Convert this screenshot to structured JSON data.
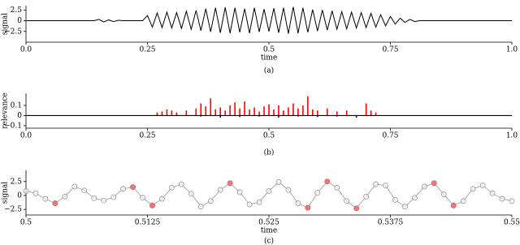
{
  "chart_data": [
    {
      "type": "line",
      "caption": "(a)",
      "ylabel": "signal",
      "xlabel": "time",
      "color": "#000000",
      "x": [
        0,
        0.01,
        0.02,
        0.03,
        0.04,
        0.05,
        0.06,
        0.07,
        0.08,
        0.09,
        0.1,
        0.11,
        0.12,
        0.13,
        0.14,
        0.15,
        0.16,
        0.17,
        0.18,
        0.19,
        0.2,
        0.21,
        0.22,
        0.23,
        0.24,
        0.25,
        0.26,
        0.27,
        0.28,
        0.29,
        0.3,
        0.31,
        0.32,
        0.33,
        0.34,
        0.35,
        0.36,
        0.37,
        0.38,
        0.39,
        0.4,
        0.41,
        0.42,
        0.43,
        0.44,
        0.45,
        0.46,
        0.47,
        0.48,
        0.49,
        0.5,
        0.51,
        0.52,
        0.53,
        0.54,
        0.55,
        0.56,
        0.57,
        0.58,
        0.59,
        0.6,
        0.61,
        0.62,
        0.63,
        0.64,
        0.65,
        0.66,
        0.67,
        0.68,
        0.69,
        0.7,
        0.71,
        0.72,
        0.73,
        0.74,
        0.75,
        0.76,
        0.77,
        0.78,
        0.79,
        0.8,
        0.81,
        0.82,
        0.83,
        0.84,
        0.85,
        0.86,
        0.87,
        0.88,
        0.89,
        0.9,
        0.91,
        0.92,
        0.93,
        0.94,
        0.95,
        0.96,
        0.97,
        0.98,
        0.99,
        1
      ],
      "values": [
        0,
        0,
        0,
        0,
        0,
        0,
        0,
        0,
        0,
        0,
        0,
        0,
        0,
        0,
        0,
        0.3,
        -0.3,
        0.2,
        -0.2,
        0.1,
        0,
        0,
        0,
        0,
        0,
        1.2,
        -1.5,
        1.8,
        -1.6,
        2.0,
        -1.7,
        1.9,
        -1.8,
        2.2,
        -2.0,
        2.4,
        -2.3,
        2.8,
        -2.6,
        3.0,
        -2.8,
        3.1,
        -2.9,
        3.0,
        -2.7,
        2.8,
        -2.9,
        3.0,
        -2.6,
        2.7,
        -2.5,
        2.9,
        -2.8,
        3.0,
        -3.0,
        3.2,
        -2.9,
        3.0,
        -2.7,
        2.6,
        -2.4,
        2.5,
        -2.2,
        2.3,
        -2.0,
        2.1,
        -1.9,
        2.0,
        -1.7,
        1.9,
        -1.6,
        1.7,
        -1.5,
        1.4,
        -1.2,
        1.0,
        -0.8,
        0.6,
        -0.4,
        0.3,
        -0.2,
        0,
        0,
        0,
        0,
        0,
        0,
        0,
        0,
        0,
        0,
        0,
        0,
        0,
        0,
        0,
        0,
        0,
        0,
        0,
        0
      ],
      "xlim": [
        0,
        1
      ],
      "xticks": [
        {
          "value": 0,
          "label": "0.0"
        },
        0.25,
        0.5,
        0.75,
        {
          "value": 1,
          "label": "1.0"
        }
      ],
      "ylim": [
        -5,
        3.5
      ],
      "yticks": [
        {
          "value": -2.5,
          "label": "−2.5"
        },
        0,
        2.5
      ]
    },
    {
      "type": "bar",
      "caption": "(b)",
      "ylabel": "relevance",
      "series": [
        {
          "color": "#ff0000",
          "x": [
            0.27,
            0.28,
            0.29,
            0.3,
            0.31,
            0.33,
            0.35,
            0.36,
            0.37,
            0.38,
            0.39,
            0.4,
            0.41,
            0.42,
            0.43,
            0.44,
            0.45,
            0.46,
            0.47,
            0.48,
            0.49,
            0.5,
            0.51,
            0.52,
            0.53,
            0.54,
            0.55,
            0.56,
            0.57,
            0.58,
            0.59,
            0.6,
            0.62,
            0.64,
            0.66,
            0.7,
            0.71,
            0.72
          ],
          "values": [
            0.03,
            0.04,
            0.06,
            0.05,
            0.03,
            0.05,
            0.07,
            0.12,
            0.09,
            0.17,
            0.06,
            0.08,
            0.05,
            0.1,
            0.13,
            0.07,
            0.14,
            0.06,
            0.08,
            0.04,
            0.09,
            0.11,
            0.06,
            0.1,
            0.05,
            0.08,
            0.12,
            0.07,
            0.1,
            0.19,
            0.06,
            0.05,
            0.07,
            0.04,
            0.05,
            0.12,
            0.05,
            0.03
          ]
        },
        {
          "color": "#0000cc",
          "x": [
            0.36,
            0.4,
            0.44,
            0.48,
            0.52,
            0.56,
            0.6,
            0.64,
            0.68
          ],
          "values": [
            -0.01,
            -0.02,
            -0.015,
            -0.01,
            -0.02,
            -0.01,
            -0.015,
            -0.01,
            -0.02
          ]
        }
      ],
      "xlim": [
        0,
        1
      ],
      "xticks": [
        {
          "value": 0,
          "label": "0.0"
        },
        0.25,
        0.5,
        0.75,
        {
          "value": 1,
          "label": "1.0"
        }
      ],
      "ylim": [
        -0.125,
        0.22
      ],
      "yticks": [
        {
          "value": -0.1,
          "label": "−0.1"
        },
        0,
        0.1
      ]
    },
    {
      "type": "scatter",
      "caption": "(c)",
      "ylabel": "signal",
      "xlabel": "time",
      "series": [
        {
          "color": "#999999",
          "connect": true,
          "x": [
            0.5,
            0.501,
            0.502,
            0.503,
            0.504,
            0.505,
            0.506,
            0.507,
            0.508,
            0.509,
            0.51,
            0.511,
            0.512,
            0.513,
            0.514,
            0.515,
            0.516,
            0.517,
            0.518,
            0.519,
            0.52,
            0.521,
            0.522,
            0.523,
            0.524,
            0.525,
            0.526,
            0.527,
            0.528,
            0.529,
            0.53,
            0.531,
            0.532,
            0.533,
            0.534,
            0.535,
            0.536,
            0.537,
            0.538,
            0.539,
            0.54,
            0.541,
            0.542,
            0.543,
            0.544,
            0.545,
            0.546,
            0.547,
            0.548,
            0.549,
            0.55
          ],
          "values": [
            0.8,
            0.4,
            -0.6,
            -1.4,
            -0.2,
            1.6,
            0.9,
            -0.5,
            -0.9,
            -0.3,
            1.2,
            1.5,
            -0.4,
            -1.8,
            -0.6,
            1.4,
            2.0,
            0.3,
            -2.0,
            -1.0,
            1.0,
            2.2,
            0.6,
            -1.6,
            -1.2,
            0.8,
            2.4,
            1.0,
            -1.4,
            -2.2,
            0.5,
            2.5,
            1.4,
            -1.0,
            -2.3,
            -0.2,
            2.0,
            1.8,
            -0.8,
            -2.0,
            -0.4,
            1.6,
            2.2,
            0.2,
            -1.8,
            -1.0,
            1.2,
            1.8,
            0.4,
            -0.6,
            -1.0
          ]
        },
        {
          "color": "#e06060",
          "connect": false,
          "x": [
            0.503,
            0.511,
            0.513,
            0.521,
            0.529,
            0.531,
            0.534,
            0.542,
            0.544
          ],
          "values": [
            -1.4,
            1.5,
            -1.8,
            2.2,
            -2.2,
            2.5,
            -2.3,
            2.2,
            -1.8
          ]
        }
      ],
      "xlim": [
        0.5,
        0.55
      ],
      "xticks": [
        0.5,
        0.5125,
        0.525,
        0.5375,
        0.55
      ],
      "ylim": [
        -3.5,
        4.5
      ],
      "yticks": [
        {
          "value": -2.5,
          "label": "−2.5"
        },
        0,
        2.5
      ]
    }
  ]
}
